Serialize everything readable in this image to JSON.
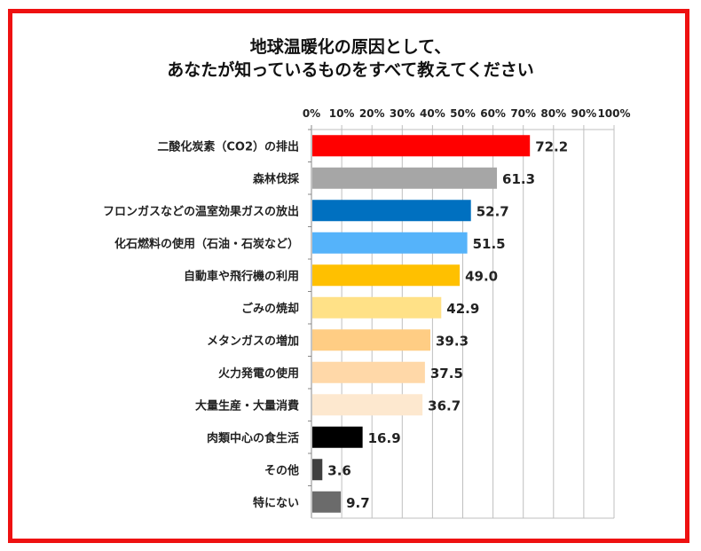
{
  "chart_data": {
    "type": "bar",
    "orientation": "horizontal",
    "title_lines": [
      "地球温暖化の原因として、",
      "あなたが知っているものをすべて教えてください"
    ],
    "xlabel": "",
    "ylabel": "",
    "xlim": [
      0,
      100
    ],
    "x_ticks": [
      "0%",
      "10%",
      "20%",
      "30%",
      "40%",
      "50%",
      "60%",
      "70%",
      "80%",
      "90%",
      "100%"
    ],
    "grid": true,
    "categories": [
      "二酸化炭素（CO2）の排出",
      "森林伐採",
      "フロンガスなどの温室効果ガスの放出",
      "化石燃料の使用（石油・石炭など）",
      "自動車や飛行機の利用",
      "ごみの焼却",
      "メタンガスの増加",
      "火力発電の使用",
      "大量生産・大量消費",
      "肉類中心の食生活",
      "その他",
      "特にない"
    ],
    "values": [
      72.2,
      61.3,
      52.7,
      51.5,
      49.0,
      42.9,
      39.3,
      37.5,
      36.7,
      16.9,
      3.6,
      9.7
    ],
    "value_labels": [
      "72.2",
      "61.3",
      "52.7",
      "51.5",
      "49.0",
      "42.9",
      "39.3",
      "37.5",
      "36.7",
      "16.9",
      "3.6",
      "9.7"
    ],
    "colors": [
      "#ff0000",
      "#a6a6a6",
      "#0070c0",
      "#55b3fa",
      "#ffc000",
      "#ffe187",
      "#ffcd84",
      "#ffd8a8",
      "#fde8cf",
      "#000000",
      "#404040",
      "#6b6b6b"
    ]
  }
}
